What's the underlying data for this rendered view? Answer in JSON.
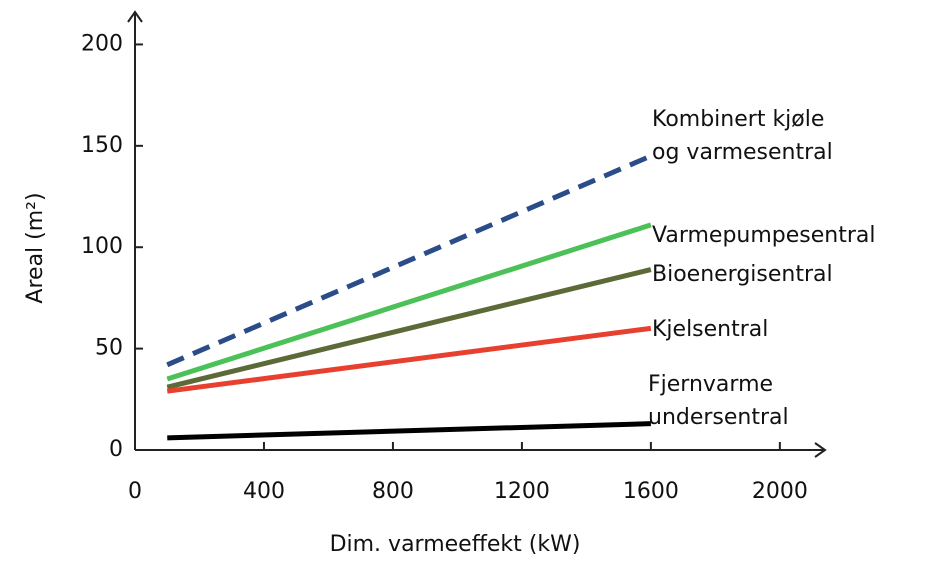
{
  "chart_data": {
    "type": "line",
    "x_label": "Dim. varmeeffekt (kW)",
    "y_label": "Areal (m²)",
    "x": [
      100,
      1600
    ],
    "series": [
      {
        "name": [
          "Kombinert kjøle",
          "og varmesentral"
        ],
        "color": "#2a4d8a",
        "dashed": true,
        "values": [
          42,
          145
        ]
      },
      {
        "name": [
          "Varmepumpesentral"
        ],
        "color": "#4cc158",
        "values": [
          35,
          111
        ]
      },
      {
        "name": [
          "Bioenergisentral"
        ],
        "color": "#5b6a37",
        "values": [
          31,
          89
        ]
      },
      {
        "name": [
          "Kjelsentral"
        ],
        "color": "#e8402f",
        "values": [
          29,
          60
        ]
      },
      {
        "name": [
          "Fjernvarme",
          "undersentral"
        ],
        "color": "#000000",
        "values": [
          6,
          13
        ]
      }
    ],
    "xlim": [
      0,
      2140
    ],
    "ylim": [
      0,
      216
    ],
    "xticks": [
      0,
      400,
      800,
      1200,
      1600,
      2000
    ],
    "yticks": [
      0,
      50,
      100,
      150,
      200
    ]
  }
}
